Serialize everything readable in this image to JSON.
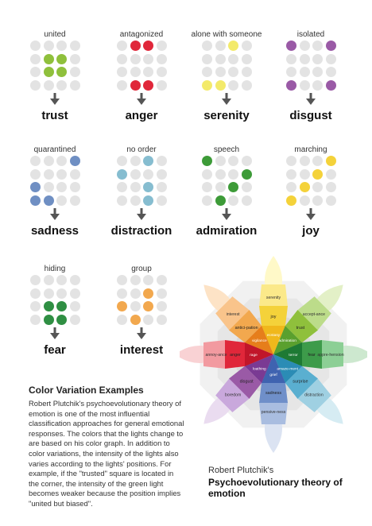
{
  "grids": [
    {
      "caption": "united",
      "emotion": "trust",
      "color": "#8fc03c",
      "lit": [
        5,
        6,
        9,
        10
      ]
    },
    {
      "caption": "antagonized",
      "emotion": "anger",
      "color": "#e0273a",
      "lit": [
        1,
        2,
        13,
        14
      ]
    },
    {
      "caption": "alone with someone",
      "emotion": "serenity",
      "color": "#f3ea6a",
      "lit": [
        2,
        12,
        13
      ]
    },
    {
      "caption": "isolated",
      "emotion": "disgust",
      "color": "#9a5aa6",
      "lit": [
        0,
        3,
        12,
        15
      ]
    },
    {
      "caption": "quarantined",
      "emotion": "sadness",
      "color": "#6f8fc3",
      "lit": [
        3,
        8,
        12,
        13
      ]
    },
    {
      "caption": "no order",
      "emotion": "distraction",
      "color": "#86bdd0",
      "lit": [
        2,
        4,
        10,
        14
      ]
    },
    {
      "caption": "speech",
      "emotion": "admiration",
      "color": "#3d9b38",
      "lit": [
        0,
        7,
        10,
        13
      ]
    },
    {
      "caption": "marching",
      "emotion": "joy",
      "color": "#f4d23a",
      "lit": [
        3,
        6,
        9,
        12
      ]
    },
    {
      "caption": "hiding",
      "emotion": "fear",
      "color": "#2f8f43",
      "lit": [
        9,
        10,
        13,
        14
      ]
    },
    {
      "caption": "group",
      "emotion": "interest",
      "color": "#f2a84e",
      "lit": [
        6,
        8,
        10,
        13
      ]
    }
  ],
  "examples": {
    "title": "Color Variation Examples",
    "body": "Robert Plutchik's psychoevolutionary theory of emotion is one of the most influential classification approaches for general emotional responses. The colors that the lights change to are based on his color graph. In addition to color variations, the intensity of the lights also varies according to the lights' positions. For example, if the \"trusted\" square is located in the corner, the intensity of the green light becomes weaker because the position implies \"united but biased\"."
  },
  "wheel": {
    "petals": [
      {
        "outer": "",
        "middle": "serenity",
        "inner": "joy",
        "core": "ecstasy",
        "colors": [
          "#fff9c8",
          "#fbe98a",
          "#f4d23a",
          "#f0b81c"
        ]
      },
      {
        "outer": "",
        "middle": "accept-ance",
        "inner": "trust",
        "core": "admiration",
        "colors": [
          "#e3f0c7",
          "#bcdc8a",
          "#8fc03c",
          "#5aa02e"
        ]
      },
      {
        "outer": "",
        "middle": "appre-hension",
        "inner": "fear",
        "core": "terror",
        "colors": [
          "#cde8cf",
          "#8ccf95",
          "#3d9b4a",
          "#1e7a34"
        ]
      },
      {
        "outer": "",
        "middle": "distraction",
        "inner": "surprise",
        "core": "amaze-ment",
        "colors": [
          "#d6ecf3",
          "#9fd0e2",
          "#5aafd0",
          "#2b8cb5"
        ]
      },
      {
        "outer": "",
        "middle": "pensive-ness",
        "inner": "sadness",
        "core": "grief",
        "colors": [
          "#dbe3f2",
          "#a9bde0",
          "#6f8fc9",
          "#3f63b0"
        ]
      },
      {
        "outer": "",
        "middle": "boredom",
        "inner": "disgust",
        "core": "loathing",
        "colors": [
          "#eadcf0",
          "#c9a8dc",
          "#9a5aa6",
          "#7a3a93"
        ]
      },
      {
        "outer": "",
        "middle": "annoy-ance",
        "inner": "anger",
        "core": "rage",
        "colors": [
          "#f9d2d4",
          "#f29aa0",
          "#e0273a",
          "#c1162a"
        ]
      },
      {
        "outer": "",
        "middle": "interest",
        "inner": "antici-pation",
        "core": "vigilance",
        "colors": [
          "#fde3c6",
          "#f9c48b",
          "#f2a84e",
          "#e67e1b"
        ]
      }
    ],
    "caption_line1": "Robert Plutchik's",
    "caption_line2": "Psychoevolutionary theory of emotion"
  }
}
